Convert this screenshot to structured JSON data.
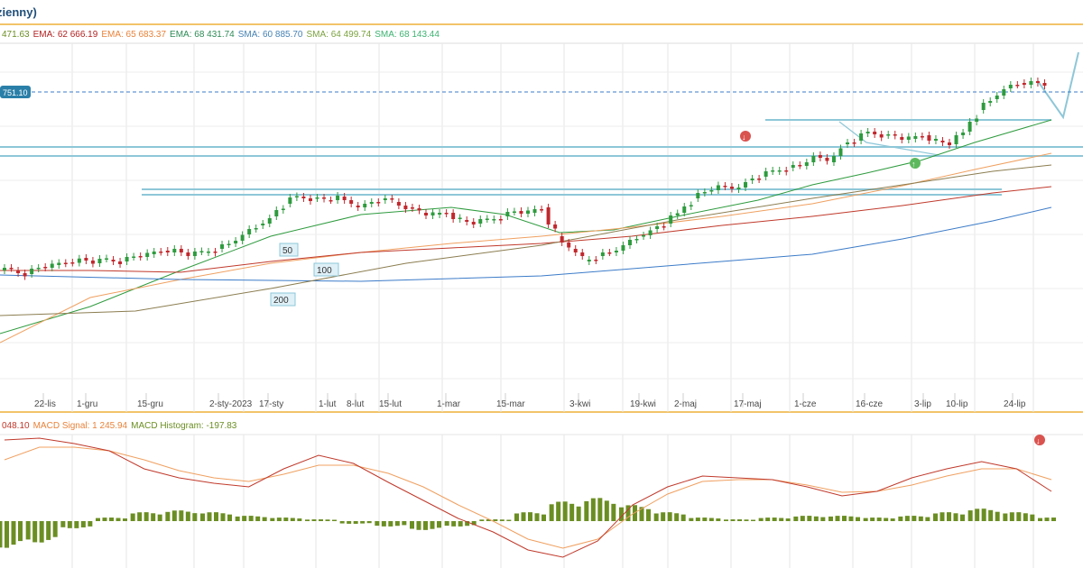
{
  "header": {
    "title": "zienny)"
  },
  "legend": [
    {
      "text": "471.63",
      "color": "#6b8e23"
    },
    {
      "text": "EMA: 62 666.19",
      "color": "#b22222"
    },
    {
      "text": "EMA: 65 683.37",
      "color": "#e8833a"
    },
    {
      "text": "EMA: 68 431.74",
      "color": "#2e8b57"
    },
    {
      "text": "SMA: 60 885.70",
      "color": "#4682b4"
    },
    {
      "text": "SMA: 64 499.74",
      "color": "#7ba23f"
    },
    {
      "text": "SMA: 68 143.44",
      "color": "#3cb371"
    }
  ],
  "macd_legend": [
    {
      "text": "048.10",
      "color": "#c0392b"
    },
    {
      "text": "MACD Signal: 1 245.94",
      "color": "#e8833a"
    },
    {
      "text": "MACD Histogram: -197.83",
      "color": "#6b8e23"
    }
  ],
  "price_tag": "751.10",
  "ma_labels": [
    "50",
    "100",
    "200"
  ],
  "colors": {
    "up": "#2e9b3e",
    "down": "#c0282d",
    "ema_red": "#c0392b",
    "ema_orange": "#f0a060",
    "ema_green": "#2e9b3e",
    "sma_blue": "#3b7bc8",
    "sma_olive": "#8b7d50",
    "level": "#8ec7d8",
    "macd_hist": "#6b8e23"
  },
  "chart_data": [
    {
      "type": "candlestick",
      "x_ticks": [
        "22-lis",
        "1-gru",
        "15-gru",
        "2-sty-2023",
        "17-sty",
        "1-lut",
        "8-lut",
        "15-lut",
        "1-mar",
        "15-mar",
        "3-kwi",
        "19-kwi",
        "2-maj",
        "17-maj",
        "1-cze",
        "16-cze",
        "3-lip",
        "10-lip",
        "24-lip"
      ],
      "last_price_label": "751.10",
      "close_path": [
        300,
        304,
        296,
        294,
        291,
        286,
        292,
        288,
        290,
        284,
        282,
        278,
        276,
        284,
        280,
        276,
        270,
        260,
        250,
        240,
        226,
        218,
        220,
        222,
        218,
        228,
        226,
        222,
        224,
        230,
        236,
        238,
        236,
        244,
        248,
        244,
        240,
        234,
        236,
        230,
        262,
        276,
        290,
        284,
        280,
        272,
        262,
        254,
        248,
        236,
        220,
        212,
        206,
        210,
        200,
        196,
        190,
        186,
        184,
        172,
        180,
        160,
        156,
        146,
        150,
        152,
        154,
        150,
        156,
        160,
        146,
        122,
        110,
        98,
        92,
        90,
        94
      ]
    },
    {
      "type": "line",
      "series": [
        {
          "name": "MACD",
          "values": [
            488,
            486,
            492,
            500,
            520,
            530,
            536,
            540,
            520,
            505,
            514,
            535,
            555,
            575,
            590,
            610,
            618,
            600,
            560,
            540,
            528,
            530,
            532,
            540,
            550,
            545,
            530,
            520,
            512,
            520,
            545
          ]
        },
        {
          "name": "MACD Signal",
          "values": [
            510,
            496,
            496,
            500,
            510,
            522,
            530,
            534,
            526,
            516,
            516,
            525,
            540,
            560,
            578,
            598,
            608,
            598,
            570,
            548,
            534,
            532,
            532,
            538,
            546,
            545,
            538,
            528,
            520,
            520,
            532
          ]
        }
      ],
      "histogram": [
        -30,
        -24,
        -8,
        4,
        10,
        12,
        10,
        6,
        4,
        2,
        -3,
        -6,
        -10,
        -6,
        2,
        10,
        22,
        26,
        18,
        10,
        4,
        2,
        4,
        6,
        6,
        4,
        6,
        10,
        14,
        10,
        4
      ]
    }
  ]
}
